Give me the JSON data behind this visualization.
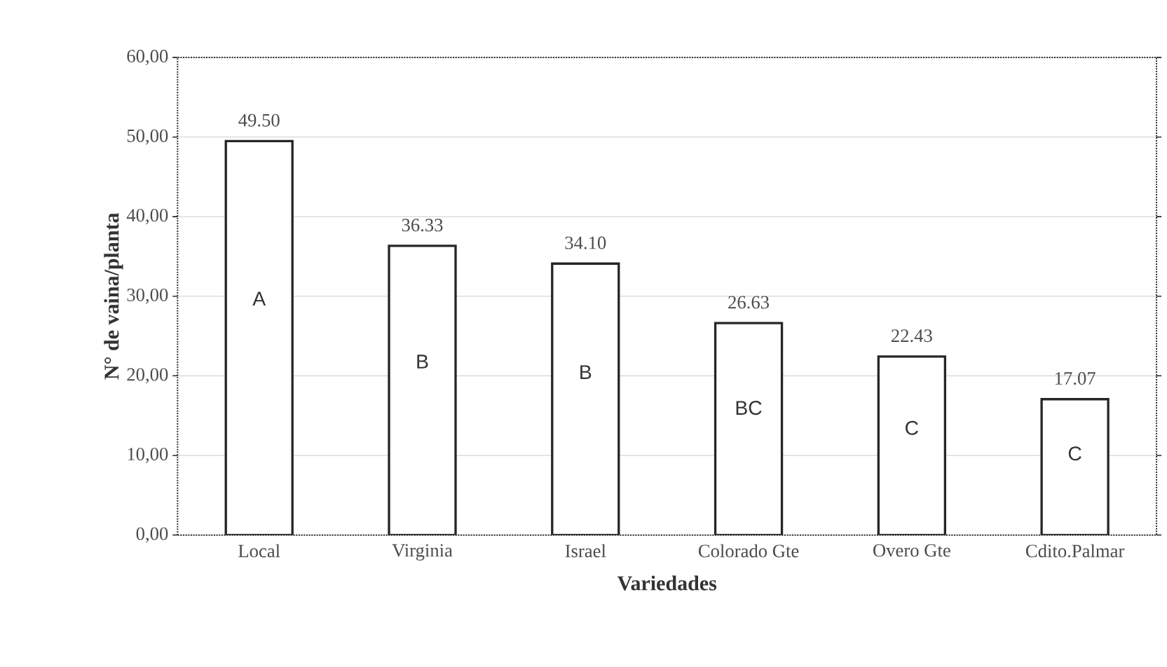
{
  "chart_data": {
    "type": "bar",
    "xlabel": "Variedades",
    "ylabel": "N° de vaina/planta",
    "categories": [
      "Local",
      "Virginia",
      "Israel",
      "Colorado Gte",
      "Overo Gte",
      "Cdito.Palmar"
    ],
    "values": [
      49.5,
      36.33,
      34.1,
      26.63,
      22.43,
      17.07
    ],
    "value_labels": [
      "49.50",
      "36.33",
      "34.10",
      "26.63",
      "22.43",
      "17.07"
    ],
    "color": "#ffffff",
    "ylim": [
      0,
      60
    ],
    "yticks": [
      {
        "value": 0,
        "label": "0,00"
      },
      {
        "value": 10,
        "label": "10,00"
      },
      {
        "value": 20,
        "label": "20,00"
      },
      {
        "value": 30,
        "label": "30,00"
      },
      {
        "value": 40,
        "label": "40,00"
      },
      {
        "value": 50,
        "label": "50,00"
      },
      {
        "value": 60,
        "label": "60,00"
      }
    ],
    "grid": "y",
    "annotations": [
      "A",
      "B",
      "B",
      "BC",
      "C",
      "C"
    ]
  }
}
